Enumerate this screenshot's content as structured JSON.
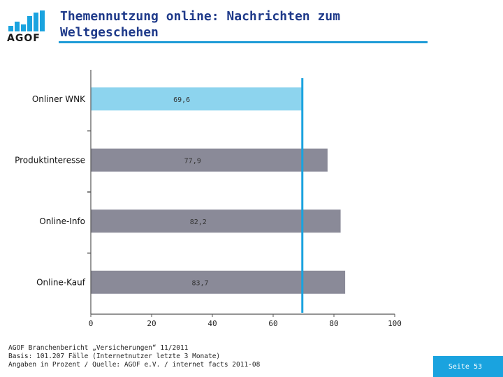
{
  "logo": {
    "text": "AGOF",
    "bar_color": "#1aa3df"
  },
  "title": {
    "line1": "Themennutzung online: Nachrichten zum",
    "line2": "Weltgeschehen"
  },
  "chart_data": {
    "type": "bar",
    "orientation": "horizontal",
    "categories": [
      "Onliner WNK",
      "Produktinteresse",
      "Online-Info",
      "Online-Kauf"
    ],
    "values": [
      69.6,
      77.9,
      82.2,
      83.7
    ],
    "value_labels": [
      "69,6",
      "77,9",
      "82,2",
      "83,7"
    ],
    "colors": [
      "#8dd4ee",
      "#8a8a98",
      "#8a8a98",
      "#8a8a98"
    ],
    "reference_line": {
      "value": 69.6,
      "color": "#1aa3df"
    },
    "xlim": [
      0,
      100
    ],
    "xticks": [
      "0",
      "20",
      "40",
      "60",
      "80",
      "100"
    ],
    "grid": false
  },
  "footer": {
    "line1": "AGOF Branchenbericht „Versicherungen“ 11/2011",
    "line2": "Basis: 101.207 Fälle (Internetnutzer letzte 3 Monate)",
    "line3": "Angaben in Prozent / Quelle: AGOF e.V. / internet facts 2011-08"
  },
  "page": {
    "label": "Seite 53",
    "color": "#1aa3df"
  }
}
